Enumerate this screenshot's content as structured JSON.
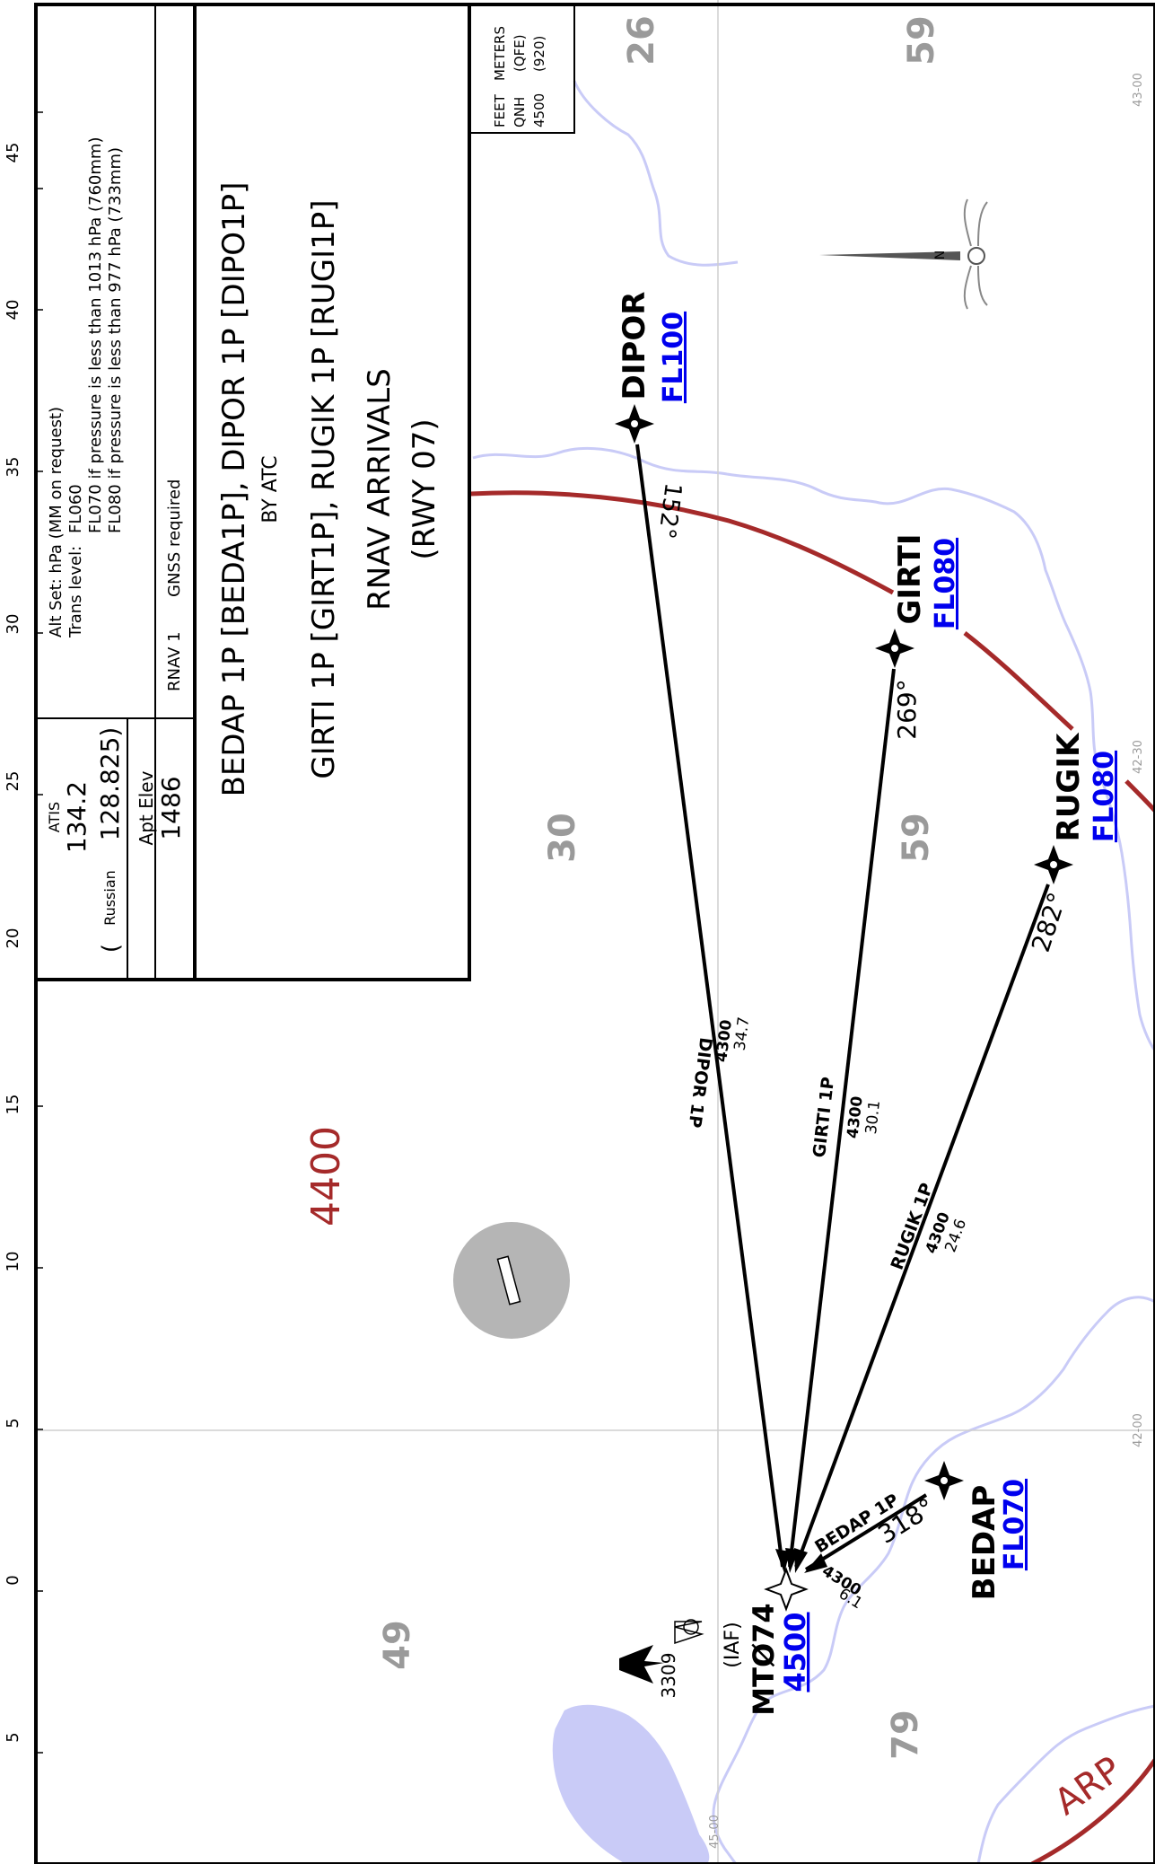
{
  "chart": {
    "title_line_1": "BEDAP 1P [BEDA1P], DIPOR 1P [DIPO1P]",
    "title_line_1_sub": "BY ATC",
    "title_line_2": "GIRTI 1P [GIRT1P], RUGIK 1P [RUGI1P]",
    "title_line_3": "RNAV ARRIVALS",
    "title_line_4": "(RWY 07)"
  },
  "comms": {
    "atis_label": "ATIS",
    "atis_freq": "134.2",
    "russian_label": "Russian",
    "russian_freq": "128.825)",
    "open_paren": "(",
    "apt_elev_label": "Apt Elev",
    "apt_elev_value": "1486"
  },
  "altimetry": {
    "alt_set": "Alt Set: hPa (MM on request)",
    "trans_level_label": "Trans level:",
    "trans_level_value": "FL060",
    "fl070_note": "FL070 if pressure is less than 1013 hPa (760mm)",
    "fl080_note": "FL080 if pressure is less than 977 hPa (733mm)",
    "rnav": "RNAV 1",
    "gnss": "GNSS required"
  },
  "units_box": {
    "feet": "FEET",
    "meters": "METERS",
    "qnh": "QNH",
    "qfe": "(QFE)",
    "ft_val": "4500",
    "m_val": "(920)"
  },
  "scale_ticks": [
    "45",
    "40",
    "35",
    "30",
    "25",
    "20",
    "15",
    "10",
    "5",
    "0",
    "5"
  ],
  "grid_labels": {
    "lat_43": "43-00",
    "lat_4230": "42-30",
    "lat_42": "42-00",
    "lon_45": "45-00"
  },
  "waypoints": {
    "dipor": {
      "name": "DIPOR",
      "alt": "FL100"
    },
    "girti": {
      "name": "GIRTI",
      "alt": "FL080"
    },
    "rugik": {
      "name": "RUGIK",
      "alt": "FL080"
    },
    "bedap": {
      "name": "BEDAP",
      "alt": "FL070"
    },
    "iaf": {
      "role": "(IAF)",
      "name": "MTØ74",
      "alt": "4500"
    }
  },
  "routes": {
    "dipor": {
      "label": "DIPOR 1P",
      "alt": "4300",
      "dist": "34.7",
      "course": "152°"
    },
    "girti": {
      "label": "GIRTI 1P",
      "alt": "4300",
      "dist": "30.1",
      "course": "269°"
    },
    "rugik": {
      "label": "RUGIK 1P",
      "alt": "4300",
      "dist": "24.6",
      "course": "282°"
    },
    "bedap": {
      "label": "BEDAP 1P",
      "alt": "4300",
      "dist": "6.1",
      "course": "318°"
    }
  },
  "msa_grid": {
    "a": "26",
    "b": "59",
    "c": "30",
    "d": "59",
    "e": "49",
    "f": "79"
  },
  "obstacle": {
    "elevation": "3309"
  },
  "misc": {
    "arp": "ARP",
    "alt_4400": "4400",
    "north": "N"
  },
  "colors": {
    "lake_coast": "#c9cbf7",
    "route_ring": "#a52a2a",
    "alt_blue": "#0000ee",
    "msa_grey": "#9a9a9a",
    "airport_grey": "#b5b5b5"
  }
}
